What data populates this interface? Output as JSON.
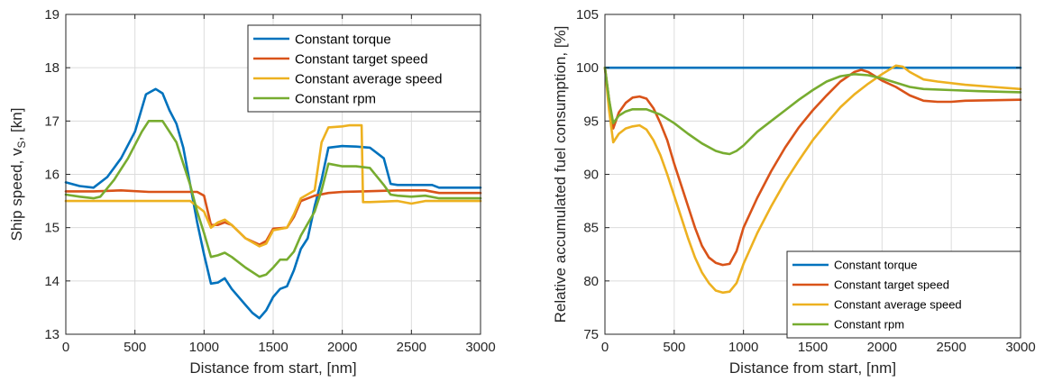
{
  "chart_data": [
    {
      "type": "line",
      "xlabel": "Distance from start, [nm]",
      "ylabel": "Ship speed, v",
      "ylabel_sub": "S",
      "ylabel_tail": ", [kn]",
      "xlim": [
        0,
        3000
      ],
      "ylim": [
        13,
        19
      ],
      "xticks": [
        0,
        500,
        1000,
        1500,
        2000,
        2500,
        3000
      ],
      "yticks": [
        13,
        14,
        15,
        16,
        17,
        18,
        19
      ],
      "grid": true,
      "legend_position": "top-right",
      "series": [
        {
          "name": "Constant torque",
          "color": "#0072BD",
          "points": [
            [
              0,
              15.85
            ],
            [
              100,
              15.78
            ],
            [
              200,
              15.75
            ],
            [
              300,
              15.95
            ],
            [
              400,
              16.3
            ],
            [
              500,
              16.8
            ],
            [
              580,
              17.5
            ],
            [
              650,
              17.6
            ],
            [
              700,
              17.52
            ],
            [
              750,
              17.2
            ],
            [
              800,
              16.95
            ],
            [
              850,
              16.5
            ],
            [
              900,
              15.8
            ],
            [
              950,
              15.1
            ],
            [
              1000,
              14.5
            ],
            [
              1050,
              13.95
            ],
            [
              1100,
              13.97
            ],
            [
              1150,
              14.05
            ],
            [
              1200,
              13.85
            ],
            [
              1300,
              13.55
            ],
            [
              1350,
              13.4
            ],
            [
              1400,
              13.3
            ],
            [
              1450,
              13.45
            ],
            [
              1500,
              13.7
            ],
            [
              1550,
              13.85
            ],
            [
              1600,
              13.9
            ],
            [
              1650,
              14.2
            ],
            [
              1700,
              14.6
            ],
            [
              1750,
              14.8
            ],
            [
              1800,
              15.4
            ],
            [
              1850,
              15.9
            ],
            [
              1900,
              16.5
            ],
            [
              2000,
              16.53
            ],
            [
              2100,
              16.52
            ],
            [
              2200,
              16.5
            ],
            [
              2300,
              16.3
            ],
            [
              2350,
              15.82
            ],
            [
              2400,
              15.8
            ],
            [
              2500,
              15.8
            ],
            [
              2650,
              15.8
            ],
            [
              2700,
              15.75
            ],
            [
              3000,
              15.75
            ]
          ]
        },
        {
          "name": "Constant target speed",
          "color": "#D95319",
          "points": [
            [
              0,
              15.68
            ],
            [
              200,
              15.68
            ],
            [
              400,
              15.7
            ],
            [
              600,
              15.67
            ],
            [
              800,
              15.67
            ],
            [
              950,
              15.67
            ],
            [
              1000,
              15.6
            ],
            [
              1050,
              15.05
            ],
            [
              1100,
              15.05
            ],
            [
              1150,
              15.1
            ],
            [
              1200,
              15.05
            ],
            [
              1300,
              14.8
            ],
            [
              1400,
              14.68
            ],
            [
              1450,
              14.75
            ],
            [
              1500,
              14.98
            ],
            [
              1600,
              15.0
            ],
            [
              1650,
              15.2
            ],
            [
              1700,
              15.5
            ],
            [
              1800,
              15.6
            ],
            [
              1900,
              15.65
            ],
            [
              2000,
              15.67
            ],
            [
              2150,
              15.68
            ],
            [
              2400,
              15.7
            ],
            [
              2600,
              15.7
            ],
            [
              2700,
              15.65
            ],
            [
              3000,
              15.65
            ]
          ]
        },
        {
          "name": "Constant average speed",
          "color": "#EDB120",
          "points": [
            [
              0,
              15.5
            ],
            [
              200,
              15.5
            ],
            [
              400,
              15.5
            ],
            [
              600,
              15.5
            ],
            [
              800,
              15.5
            ],
            [
              900,
              15.5
            ],
            [
              950,
              15.4
            ],
            [
              1000,
              15.3
            ],
            [
              1050,
              15.0
            ],
            [
              1100,
              15.1
            ],
            [
              1150,
              15.15
            ],
            [
              1200,
              15.05
            ],
            [
              1300,
              14.8
            ],
            [
              1400,
              14.65
            ],
            [
              1450,
              14.7
            ],
            [
              1500,
              14.95
            ],
            [
              1600,
              15.0
            ],
            [
              1650,
              15.25
            ],
            [
              1700,
              15.55
            ],
            [
              1800,
              15.7
            ],
            [
              1850,
              16.6
            ],
            [
              1900,
              16.88
            ],
            [
              2000,
              16.9
            ],
            [
              2050,
              16.92
            ],
            [
              2140,
              16.92
            ],
            [
              2150,
              15.48
            ],
            [
              2200,
              15.48
            ],
            [
              2400,
              15.5
            ],
            [
              2500,
              15.45
            ],
            [
              2600,
              15.5
            ],
            [
              3000,
              15.5
            ]
          ]
        },
        {
          "name": "Constant rpm",
          "color": "#77AC30",
          "points": [
            [
              0,
              15.62
            ],
            [
              100,
              15.58
            ],
            [
              200,
              15.55
            ],
            [
              250,
              15.58
            ],
            [
              350,
              15.9
            ],
            [
              450,
              16.3
            ],
            [
              550,
              16.8
            ],
            [
              600,
              17.0
            ],
            [
              700,
              17.0
            ],
            [
              800,
              16.6
            ],
            [
              850,
              16.2
            ],
            [
              900,
              15.8
            ],
            [
              950,
              15.3
            ],
            [
              1000,
              14.9
            ],
            [
              1050,
              14.45
            ],
            [
              1100,
              14.48
            ],
            [
              1150,
              14.53
            ],
            [
              1200,
              14.45
            ],
            [
              1300,
              14.25
            ],
            [
              1400,
              14.08
            ],
            [
              1450,
              14.12
            ],
            [
              1500,
              14.25
            ],
            [
              1550,
              14.4
            ],
            [
              1600,
              14.4
            ],
            [
              1650,
              14.55
            ],
            [
              1700,
              14.85
            ],
            [
              1800,
              15.3
            ],
            [
              1850,
              15.7
            ],
            [
              1900,
              16.2
            ],
            [
              2000,
              16.15
            ],
            [
              2100,
              16.15
            ],
            [
              2200,
              16.12
            ],
            [
              2300,
              15.8
            ],
            [
              2350,
              15.62
            ],
            [
              2400,
              15.6
            ],
            [
              2500,
              15.58
            ],
            [
              2600,
              15.6
            ],
            [
              2700,
              15.55
            ],
            [
              2800,
              15.55
            ],
            [
              3000,
              15.55
            ]
          ]
        }
      ]
    },
    {
      "type": "line",
      "xlabel": "Distance from start, [nm]",
      "ylabel": "Relative accumulated fuel consumption, [%]",
      "xlim": [
        0,
        3000
      ],
      "ylim": [
        75,
        105
      ],
      "xticks": [
        0,
        500,
        1000,
        1500,
        2000,
        2500,
        3000
      ],
      "yticks": [
        75,
        80,
        85,
        90,
        95,
        100,
        105
      ],
      "grid": true,
      "legend_position": "bottom-right",
      "series": [
        {
          "name": "Constant torque",
          "color": "#0072BD",
          "points": [
            [
              0,
              100
            ],
            [
              3000,
              100
            ]
          ]
        },
        {
          "name": "Constant target speed",
          "color": "#D95319",
          "points": [
            [
              0,
              100
            ],
            [
              30,
              97
            ],
            [
              60,
              94.3
            ],
            [
              100,
              95.8
            ],
            [
              150,
              96.7
            ],
            [
              200,
              97.2
            ],
            [
              250,
              97.3
            ],
            [
              300,
              97.1
            ],
            [
              350,
              96.2
            ],
            [
              400,
              94.8
            ],
            [
              450,
              93.2
            ],
            [
              500,
              91.0
            ],
            [
              550,
              89.0
            ],
            [
              600,
              87.0
            ],
            [
              650,
              85.0
            ],
            [
              700,
              83.3
            ],
            [
              750,
              82.2
            ],
            [
              800,
              81.7
            ],
            [
              850,
              81.5
            ],
            [
              900,
              81.6
            ],
            [
              950,
              82.8
            ],
            [
              1000,
              85.0
            ],
            [
              1100,
              87.8
            ],
            [
              1200,
              90.3
            ],
            [
              1300,
              92.5
            ],
            [
              1400,
              94.4
            ],
            [
              1500,
              96.0
            ],
            [
              1600,
              97.4
            ],
            [
              1700,
              98.7
            ],
            [
              1800,
              99.6
            ],
            [
              1850,
              99.8
            ],
            [
              1900,
              99.6
            ],
            [
              2000,
              98.8
            ],
            [
              2100,
              98.2
            ],
            [
              2200,
              97.4
            ],
            [
              2300,
              96.9
            ],
            [
              2400,
              96.8
            ],
            [
              2500,
              96.8
            ],
            [
              2600,
              96.9
            ],
            [
              3000,
              97.0
            ]
          ]
        },
        {
          "name": "Constant average speed",
          "color": "#EDB120",
          "points": [
            [
              0,
              100
            ],
            [
              30,
              96
            ],
            [
              60,
              93.0
            ],
            [
              100,
              93.8
            ],
            [
              150,
              94.3
            ],
            [
              200,
              94.5
            ],
            [
              250,
              94.6
            ],
            [
              300,
              94.2
            ],
            [
              350,
              93.2
            ],
            [
              400,
              91.8
            ],
            [
              450,
              90.0
            ],
            [
              500,
              88.0
            ],
            [
              550,
              86.0
            ],
            [
              600,
              84.0
            ],
            [
              650,
              82.2
            ],
            [
              700,
              80.8
            ],
            [
              750,
              79.8
            ],
            [
              800,
              79.1
            ],
            [
              850,
              78.9
            ],
            [
              900,
              79.0
            ],
            [
              950,
              79.8
            ],
            [
              1000,
              81.6
            ],
            [
              1100,
              84.5
            ],
            [
              1200,
              87.0
            ],
            [
              1300,
              89.3
            ],
            [
              1400,
              91.3
            ],
            [
              1500,
              93.2
            ],
            [
              1600,
              94.8
            ],
            [
              1700,
              96.3
            ],
            [
              1800,
              97.5
            ],
            [
              1900,
              98.5
            ],
            [
              2000,
              99.4
            ],
            [
              2100,
              100.2
            ],
            [
              2150,
              100.1
            ],
            [
              2200,
              99.6
            ],
            [
              2300,
              98.9
            ],
            [
              2400,
              98.7
            ],
            [
              2600,
              98.4
            ],
            [
              2800,
              98.2
            ],
            [
              3000,
              98.0
            ]
          ]
        },
        {
          "name": "Constant rpm",
          "color": "#77AC30",
          "points": [
            [
              0,
              100
            ],
            [
              30,
              97
            ],
            [
              60,
              94.8
            ],
            [
              100,
              95.5
            ],
            [
              150,
              95.9
            ],
            [
              200,
              96.1
            ],
            [
              300,
              96.1
            ],
            [
              400,
              95.6
            ],
            [
              500,
              94.8
            ],
            [
              600,
              93.8
            ],
            [
              700,
              92.9
            ],
            [
              800,
              92.2
            ],
            [
              850,
              92.0
            ],
            [
              900,
              91.9
            ],
            [
              950,
              92.2
            ],
            [
              1000,
              92.7
            ],
            [
              1100,
              94.0
            ],
            [
              1200,
              95.0
            ],
            [
              1300,
              96.0
            ],
            [
              1400,
              97.0
            ],
            [
              1500,
              97.9
            ],
            [
              1600,
              98.7
            ],
            [
              1700,
              99.2
            ],
            [
              1800,
              99.4
            ],
            [
              1900,
              99.3
            ],
            [
              2000,
              99.0
            ],
            [
              2100,
              98.6
            ],
            [
              2200,
              98.2
            ],
            [
              2300,
              98.0
            ],
            [
              2500,
              97.9
            ],
            [
              2700,
              97.8
            ],
            [
              3000,
              97.7
            ]
          ]
        }
      ]
    }
  ]
}
